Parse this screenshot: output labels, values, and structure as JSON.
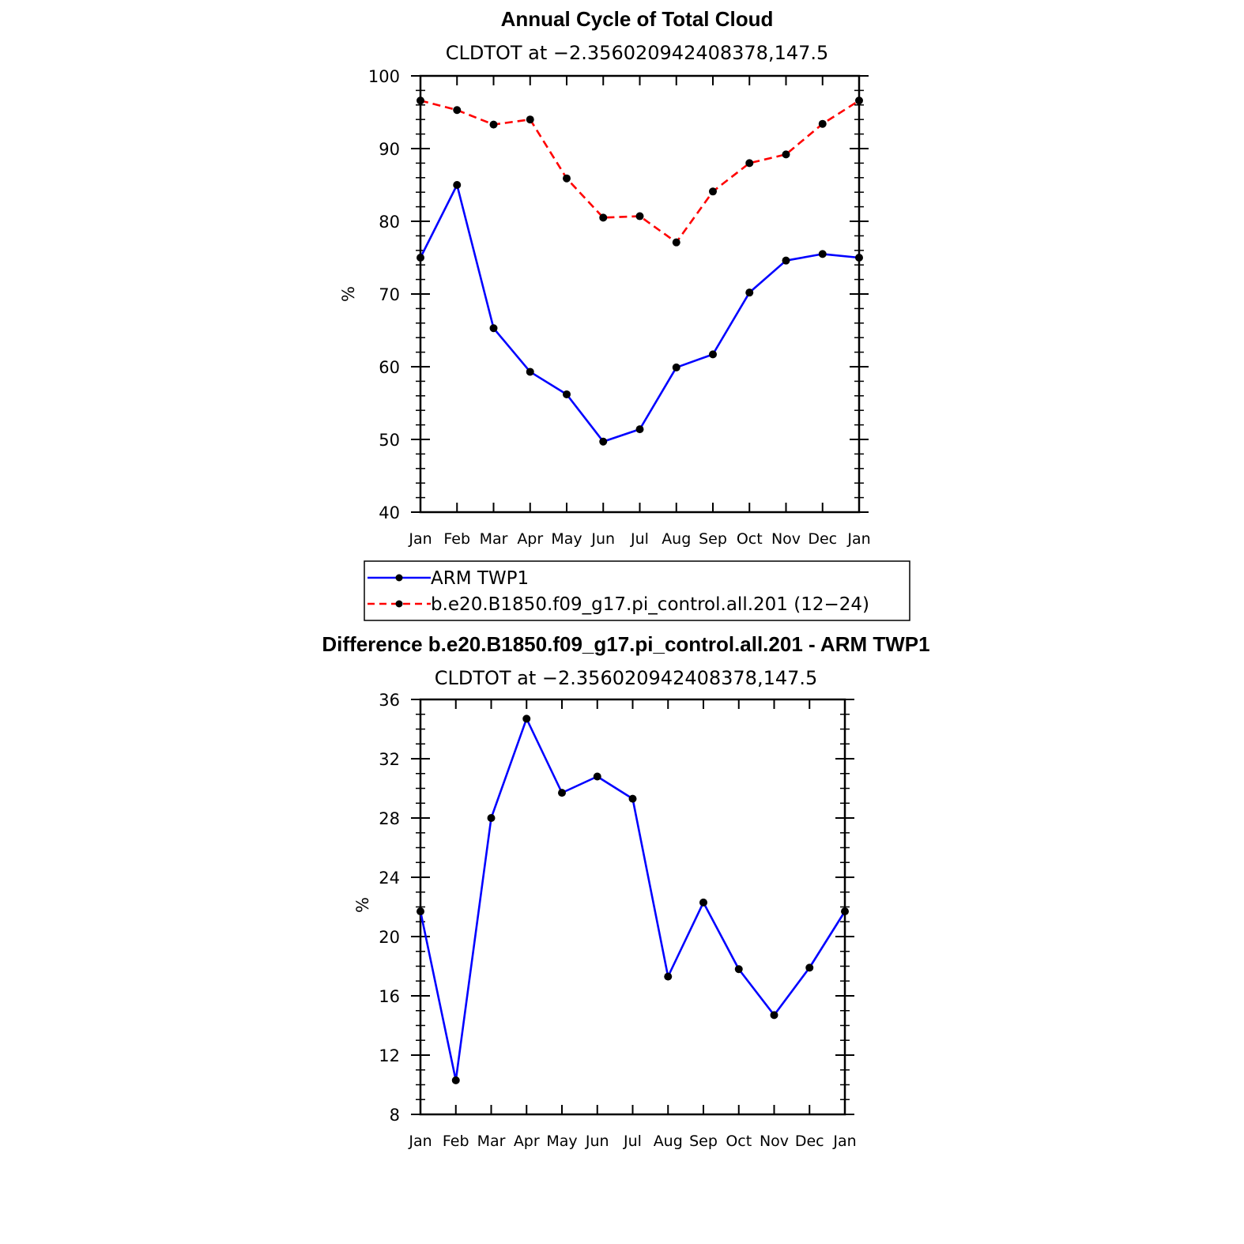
{
  "chart_data": [
    {
      "type": "line",
      "title": "Annual Cycle of Total Cloud",
      "subtitle": "CLDTOT at −2.356020942408378,147.5",
      "ylabel": "%",
      "ylim": [
        40,
        100
      ],
      "yticks": [
        "40",
        "50",
        "60",
        "70",
        "80",
        "90",
        "100"
      ],
      "categories": [
        "Jan",
        "Feb",
        "Mar",
        "Apr",
        "May",
        "Jun",
        "Jul",
        "Aug",
        "Sep",
        "Oct",
        "Nov",
        "Dec",
        "Jan"
      ],
      "legend_placement": "below",
      "series": [
        {
          "name": "ARM TWP1",
          "color": "#0000ff",
          "dash": "solid",
          "values": [
            75.0,
            85.0,
            65.3,
            59.3,
            56.2,
            49.7,
            51.4,
            59.9,
            61.7,
            70.2,
            74.6,
            75.5,
            75.0
          ]
        },
        {
          "name": "b.e20.B1850.f09_g17.pi_control.all.201 (12−24)",
          "color": "#ff0000",
          "dash": "dashed",
          "values": [
            96.6,
            95.3,
            93.3,
            94.0,
            85.9,
            80.5,
            80.7,
            77.1,
            84.1,
            88.0,
            89.2,
            93.4,
            96.6
          ]
        }
      ]
    },
    {
      "type": "line",
      "title": "Difference b.e20.B1850.f09_g17.pi_control.all.201 - ARM TWP1",
      "subtitle": "CLDTOT at −2.356020942408378,147.5",
      "ylabel": "%",
      "ylim": [
        8,
        36
      ],
      "yticks": [
        "8",
        "12",
        "16",
        "20",
        "24",
        "28",
        "32",
        "36"
      ],
      "categories": [
        "Jan",
        "Feb",
        "Mar",
        "Apr",
        "May",
        "Jun",
        "Jul",
        "Aug",
        "Sep",
        "Oct",
        "Nov",
        "Dec",
        "Jan"
      ],
      "series": [
        {
          "color": "#0000ff",
          "dash": "solid",
          "values": [
            21.7,
            10.3,
            28.0,
            34.7,
            29.7,
            30.8,
            29.3,
            17.3,
            22.3,
            17.8,
            14.7,
            17.9,
            21.7
          ]
        }
      ]
    }
  ]
}
